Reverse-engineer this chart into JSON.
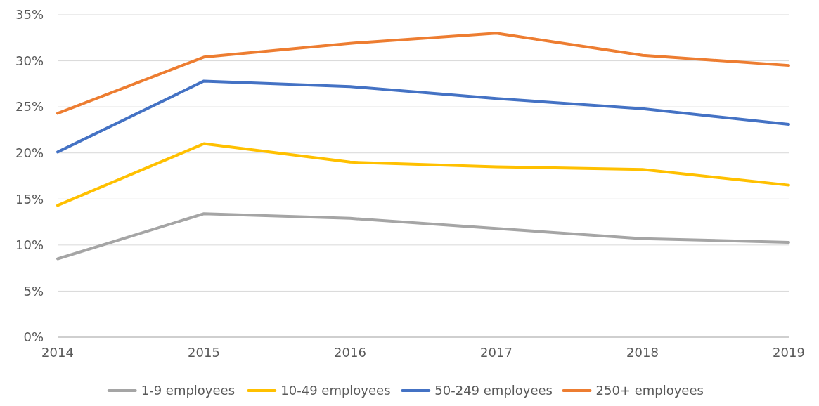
{
  "chart_data": {
    "type": "line",
    "x": [
      2014,
      2015,
      2016,
      2017,
      2018,
      2019
    ],
    "xlim": [
      2014,
      2019
    ],
    "xticks": [
      2014,
      2015,
      2016,
      2017,
      2018,
      2019
    ],
    "ylim": [
      0,
      35
    ],
    "yticks": [
      {
        "value": 0,
        "label": "0%"
      },
      {
        "value": 5,
        "label": "5%"
      },
      {
        "value": 10,
        "label": "10%"
      },
      {
        "value": 15,
        "label": "15%"
      },
      {
        "value": 20,
        "label": "20%"
      },
      {
        "value": 25,
        "label": "25%"
      },
      {
        "value": 30,
        "label": "30%"
      },
      {
        "value": 35,
        "label": "35%"
      }
    ],
    "grid": "y",
    "legend": "bottom",
    "marker": "none",
    "line_style": "solid",
    "series": [
      {
        "name": "1-9 employees",
        "color": "#a5a5a5",
        "values": [
          8.5,
          13.4,
          12.9,
          11.8,
          10.7,
          10.3
        ]
      },
      {
        "name": "10-49 employees",
        "color": "#ffc000",
        "values": [
          14.3,
          21.0,
          19.0,
          18.5,
          18.2,
          16.5
        ]
      },
      {
        "name": "50-249 employees",
        "color": "#4472c4",
        "values": [
          20.1,
          27.8,
          27.2,
          25.9,
          24.8,
          23.1
        ]
      },
      {
        "name": "250+ employees",
        "color": "#ed7d31",
        "values": [
          24.3,
          30.4,
          31.9,
          33.0,
          30.6,
          29.5
        ]
      }
    ]
  }
}
